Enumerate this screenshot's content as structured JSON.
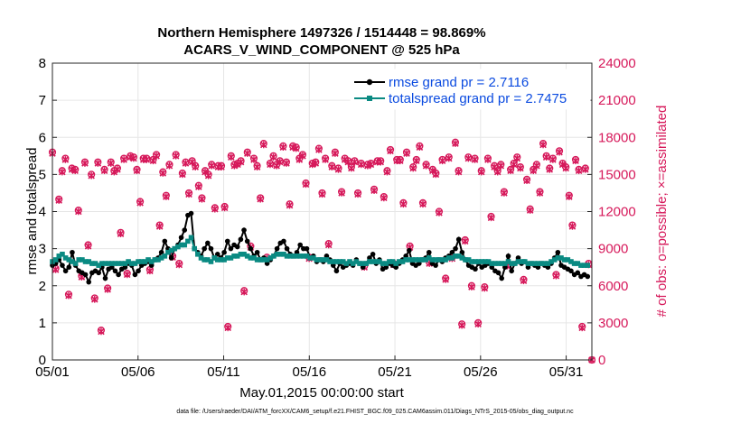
{
  "chart_data": {
    "type": "line",
    "title": "Northern Hemisphere 1497326 / 1514448 = 98.869%",
    "subtitle": "ACARS_V_WIND_COMPONENT @ 525 hPa",
    "xlabel": "May.01,2015 00:00:00 start",
    "ylabel": "rmse and totalspread",
    "ylabel_right": "# of obs: o=possible; ×=assimilated",
    "footer": "data file: /Users/raeder/DAI/ATM_forcXX/CAM6_setup/f.e21.FHIST_BGC.f09_025.CAM6assim.011/Diags_NTrS_2015-05/obs_diag_output.nc",
    "xlim": [
      1,
      32.5
    ],
    "ylim": [
      0,
      8
    ],
    "ylim_right": [
      0,
      24000
    ],
    "xticks": [
      1,
      6,
      11,
      16,
      21,
      26,
      31
    ],
    "xtick_labels": [
      "05/01",
      "05/06",
      "05/11",
      "05/16",
      "05/21",
      "05/26",
      "05/31"
    ],
    "yticks": [
      0,
      1,
      2,
      3,
      4,
      5,
      6,
      7,
      8
    ],
    "yticks_right": [
      0,
      3000,
      6000,
      9000,
      12000,
      15000,
      18000,
      21000,
      24000
    ],
    "grid": true,
    "legend": {
      "position": "top-right",
      "entries": [
        "rmse grand pr = 2.7116",
        "totalspread grand pr = 2.7475"
      ]
    },
    "colors": {
      "rmse": "#000000",
      "spread": "#0a8a82",
      "obs": "#d6185a",
      "legend_text": "#0b4be0"
    },
    "series": [
      {
        "name": "rmse",
        "values": [
          2.55,
          2.6,
          2.7,
          2.55,
          2.4,
          2.5,
          2.9,
          2.55,
          2.4,
          2.35,
          2.3,
          2.1,
          2.35,
          2.4,
          2.35,
          2.5,
          2.2,
          2.45,
          2.5,
          2.4,
          2.3,
          2.45,
          2.5,
          2.6,
          2.55,
          2.3,
          2.4,
          2.55,
          2.6,
          2.65,
          2.55,
          2.7,
          2.75,
          2.9,
          3.2,
          3.0,
          2.75,
          3.0,
          3.1,
          3.3,
          3.5,
          3.9,
          3.95,
          3.0,
          2.9,
          2.8,
          3.0,
          3.15,
          3.0,
          2.75,
          2.85,
          2.75,
          2.9,
          3.2,
          3.0,
          3.1,
          3.05,
          3.25,
          3.5,
          3.2,
          3.0,
          2.8,
          2.9,
          2.7,
          2.75,
          2.6,
          2.7,
          2.8,
          3.0,
          3.15,
          3.2,
          3.0,
          2.85,
          2.8,
          2.9,
          3.1,
          3.0,
          3.0,
          2.75,
          2.8,
          2.65,
          2.7,
          2.65,
          2.8,
          2.7,
          2.55,
          2.4,
          2.6,
          2.5,
          2.55,
          2.6,
          2.55,
          2.7,
          2.6,
          2.5,
          2.6,
          2.75,
          2.85,
          2.6,
          2.7,
          2.45,
          2.5,
          2.6,
          2.55,
          2.5,
          2.6,
          2.7,
          2.8,
          2.95,
          2.6,
          2.55,
          2.6,
          2.7,
          2.75,
          2.9,
          2.6,
          2.55,
          2.7,
          2.65,
          2.75,
          2.8,
          2.9,
          3.0,
          3.25,
          2.9,
          2.7,
          2.55,
          2.5,
          2.45,
          2.6,
          2.5,
          2.55,
          2.6,
          2.5,
          2.4,
          2.35,
          2.2,
          2.5,
          2.8,
          2.4,
          2.6,
          2.75,
          2.6,
          2.65,
          2.5,
          2.6,
          2.55,
          2.5,
          2.6,
          2.55,
          2.5,
          2.6,
          2.75,
          2.9,
          2.55,
          2.5,
          2.45,
          2.4,
          2.3,
          2.35,
          2.25,
          2.3,
          2.25
        ]
      },
      {
        "name": "totalspread",
        "values": [
          2.65,
          2.7,
          2.8,
          2.85,
          2.75,
          2.7,
          2.65,
          2.6,
          2.7,
          2.7,
          2.65,
          2.65,
          2.6,
          2.6,
          2.55,
          2.6,
          2.6,
          2.6,
          2.6,
          2.6,
          2.6,
          2.6,
          2.6,
          2.65,
          2.6,
          2.6,
          2.65,
          2.65,
          2.65,
          2.7,
          2.65,
          2.7,
          2.7,
          2.75,
          2.8,
          2.9,
          2.95,
          3.0,
          3.05,
          3.1,
          3.1,
          3.2,
          3.3,
          3.0,
          2.85,
          2.75,
          2.7,
          2.7,
          2.65,
          2.75,
          2.7,
          2.7,
          2.7,
          2.75,
          2.75,
          2.8,
          2.8,
          2.85,
          2.85,
          2.8,
          2.75,
          2.75,
          2.7,
          2.7,
          2.7,
          2.7,
          2.75,
          2.8,
          2.85,
          2.85,
          2.85,
          2.8,
          2.8,
          2.8,
          2.8,
          2.8,
          2.8,
          2.8,
          2.75,
          2.75,
          2.7,
          2.7,
          2.7,
          2.7,
          2.65,
          2.65,
          2.65,
          2.65,
          2.65,
          2.6,
          2.65,
          2.6,
          2.65,
          2.6,
          2.6,
          2.6,
          2.65,
          2.65,
          2.65,
          2.65,
          2.6,
          2.6,
          2.65,
          2.65,
          2.6,
          2.65,
          2.65,
          2.7,
          2.7,
          2.7,
          2.7,
          2.7,
          2.7,
          2.7,
          2.75,
          2.7,
          2.7,
          2.7,
          2.7,
          2.7,
          2.75,
          2.75,
          2.8,
          2.8,
          2.75,
          2.7,
          2.7,
          2.65,
          2.65,
          2.65,
          2.65,
          2.65,
          2.65,
          2.6,
          2.6,
          2.6,
          2.6,
          2.6,
          2.65,
          2.6,
          2.6,
          2.65,
          2.65,
          2.65,
          2.6,
          2.6,
          2.6,
          2.6,
          2.6,
          2.6,
          2.6,
          2.65,
          2.7,
          2.75,
          2.75,
          2.7,
          2.7,
          2.65,
          2.6,
          2.6,
          2.55,
          2.55,
          2.55
        ]
      }
    ],
    "obs_possible": [
      16800,
      7400,
      13000,
      15300,
      16300,
      5300,
      15500,
      15400,
      12100,
      6800,
      16000,
      9300,
      15000,
      5000,
      16000,
      2400,
      15400,
      5800,
      16000,
      15300,
      15500,
      10300,
      16300,
      7000,
      16500,
      16400,
      15400,
      12800,
      16300,
      16300,
      7300,
      16200,
      16600,
      10900,
      15200,
      13300,
      15800,
      8400,
      16600,
      7800,
      15100,
      16000,
      13500,
      16100,
      15700,
      14100,
      13100,
      15300,
      15000,
      15800,
      12300,
      15700,
      15700,
      12400,
      2700,
      16500,
      15800,
      15900,
      16100,
      5600,
      16800,
      9200,
      16300,
      15700,
      13100,
      17500,
      8300,
      15900,
      16500,
      15800,
      16100,
      17300,
      16000,
      12600,
      17300,
      17200,
      16300,
      16600,
      14300,
      8300,
      15900,
      16000,
      17100,
      13500,
      16300,
      9400,
      15700,
      16800,
      15500,
      13600,
      16300,
      16100,
      15600,
      16100,
      13500,
      15900,
      7600,
      15800,
      15900,
      13800,
      16100,
      16100,
      13200,
      15300,
      17000,
      7800,
      16200,
      16200,
      12700,
      16800,
      9200,
      15600,
      16200,
      17300,
      12700,
      15800,
      7900,
      15400,
      15100,
      12000,
      16200,
      6600,
      16400,
      8300,
      17600,
      15300,
      2900,
      9700,
      16400,
      6000,
      16300,
      3000,
      15300,
      5900,
      16300,
      11600,
      15700,
      15300,
      15800,
      13600,
      7700,
      15400,
      15900,
      16400,
      15600,
      6500,
      14600,
      12200,
      15400,
      15800,
      13600,
      17500,
      16500,
      15500,
      16300,
      6900,
      16900,
      15900,
      15600,
      13300,
      10900,
      16200,
      15400,
      2700,
      15500,
      7800,
      0
    ],
    "obs_assimilated": [
      16700,
      7300,
      12900,
      15200,
      16200,
      5200,
      15400,
      15300,
      12000,
      6700,
      15900,
      9200,
      14900,
      4900,
      15900,
      2300,
      15300,
      5700,
      15900,
      15200,
      15400,
      10200,
      16200,
      6900,
      16400,
      16300,
      15300,
      12700,
      16200,
      16200,
      7200,
      16100,
      16500,
      10800,
      15100,
      13200,
      15700,
      8300,
      16500,
      7700,
      15000,
      15900,
      13400,
      16000,
      15600,
      14000,
      13000,
      15200,
      14900,
      15700,
      12200,
      15600,
      15600,
      12300,
      2600,
      16400,
      15700,
      15800,
      16000,
      5500,
      16700,
      9100,
      16200,
      15600,
      13000,
      17400,
      8200,
      15800,
      16400,
      15700,
      16000,
      17200,
      15900,
      12500,
      17200,
      17100,
      16200,
      16500,
      14200,
      8200,
      15800,
      15900,
      17000,
      13400,
      16200,
      9300,
      15600,
      16700,
      15400,
      13500,
      16200,
      16000,
      15500,
      16000,
      13400,
      15800,
      7500,
      15700,
      15800,
      13700,
      16000,
      16000,
      13100,
      15200,
      16900,
      7700,
      16100,
      16100,
      12600,
      16700,
      9100,
      15500,
      16100,
      17200,
      12600,
      15700,
      7800,
      15300,
      15000,
      11900,
      16100,
      6500,
      16300,
      8200,
      17500,
      15200,
      2800,
      9600,
      16300,
      5900,
      16200,
      2900,
      15200,
      5800,
      16200,
      11500,
      15600,
      15200,
      15700,
      13500,
      7600,
      15300,
      15800,
      16300,
      15500,
      6400,
      14500,
      12100,
      15300,
      15700,
      13500,
      17400,
      16400,
      15400,
      16200,
      6800,
      16800,
      15800,
      15500,
      13200,
      10800,
      16100,
      15300,
      2600,
      15400,
      7700,
      0
    ]
  }
}
